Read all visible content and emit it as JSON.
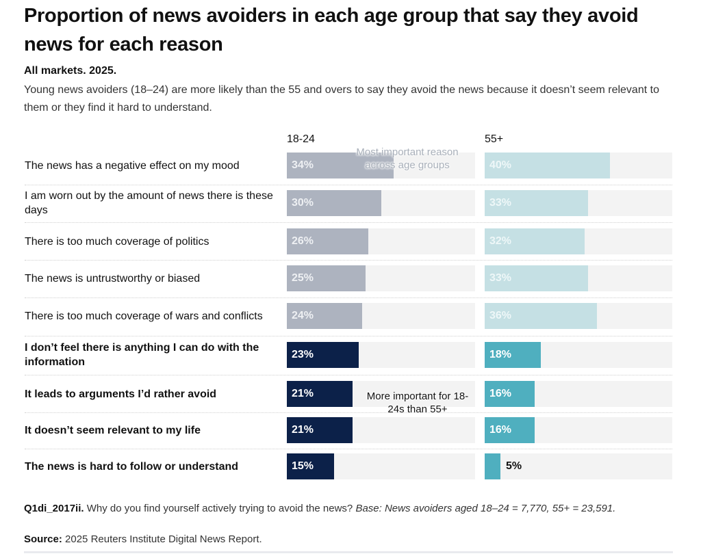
{
  "header": {
    "title": "Proportion of news avoiders in each age group that say they avoid news for each reason",
    "subtitle": "All markets. 2025.",
    "description": "Young news avoiders (18–24) are more likely than the 55 and overs to say they avoid the news because it doesn’t seem relevant to them or they find it hard to understand."
  },
  "chart_data": {
    "type": "bar",
    "orientation": "horizontal",
    "title": "Proportion of news avoiders in each age group that say they avoid news for each reason",
    "subtitle": "All markets. 2025.",
    "xlabel": "",
    "ylabel": "",
    "value_unit": "%",
    "xlim": [
      0,
      60
    ],
    "grid": false,
    "categories": [
      "The news has a negative effect on my mood",
      "I am worn out by the amount of news there is these days",
      "There is too much coverage of politics",
      "The news is untrustworthy or biased",
      "There is too much coverage of wars and conflicts",
      "I don’t feel there is anything I can do with the information",
      "It leads to arguments I’d rather avoid",
      "It doesn’t seem relevant to my life",
      "The news is hard to follow or understand"
    ],
    "highlighted": [
      false,
      false,
      false,
      false,
      false,
      true,
      true,
      true,
      true
    ],
    "series": [
      {
        "name": "18-24",
        "values": [
          34,
          30,
          26,
          25,
          24,
          23,
          21,
          21,
          15
        ],
        "labels": [
          "34%",
          "30%",
          "26%",
          "25%",
          "24%",
          "23%",
          "21%",
          "21%",
          "15%"
        ],
        "color_muted": "#adb3bf",
        "color_highlight": "#0c2149"
      },
      {
        "name": "55+",
        "values": [
          40,
          33,
          32,
          33,
          36,
          18,
          16,
          16,
          5
        ],
        "labels": [
          "40%",
          "33%",
          "32%",
          "33%",
          "36%",
          "18%",
          "16%",
          "16%",
          "5%"
        ],
        "color_muted": "#c5e0e4",
        "color_highlight": "#4fafbf"
      }
    ],
    "track_color": "#f3f3f3",
    "annotations": [
      {
        "text": "Most important reason across age groups",
        "near_row": 0,
        "panel": "18-24",
        "style": "faded"
      },
      {
        "text": "More important for 18-24s than 55+",
        "near_row": 6,
        "panel": "18-24",
        "style": "dark"
      }
    ]
  },
  "footer": {
    "question_id": "Q1di_2017ii.",
    "question": " Why do you find yourself actively trying to avoid the news? ",
    "base": "Base: News avoiders aged 18–24 = 7,770, 55+ = 23,591.",
    "source_label": "Source:",
    "source": " 2025 Reuters Institute Digital News Report."
  }
}
